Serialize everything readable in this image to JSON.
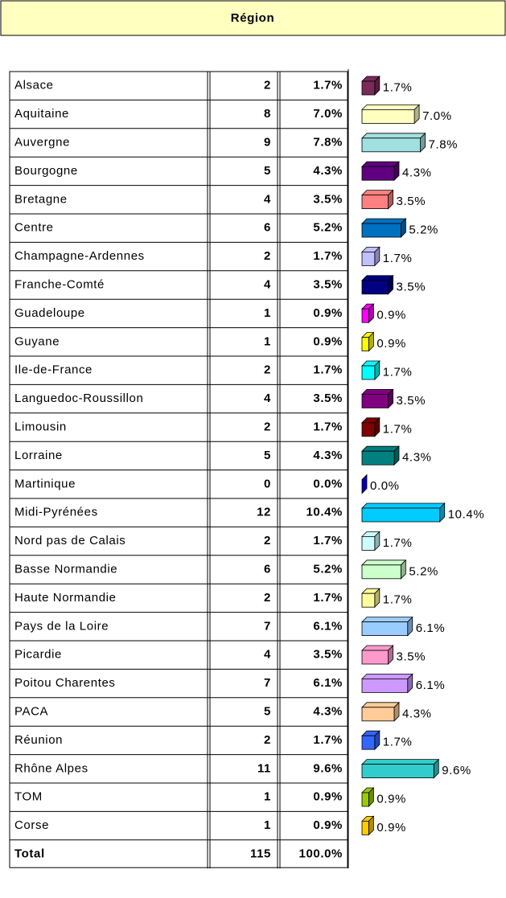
{
  "header": "Région",
  "rows": [
    {
      "region": "Alsace",
      "count": 2,
      "percent": 1.7,
      "percent_label": "1.7%",
      "color": "#7b2a5a"
    },
    {
      "region": "Aquitaine",
      "count": 8,
      "percent": 7.0,
      "percent_label": "7.0%",
      "color": "#ffffc0"
    },
    {
      "region": "Auvergne",
      "count": 9,
      "percent": 7.8,
      "percent_label": "7.8%",
      "color": "#a0e0e0"
    },
    {
      "region": "Bourgogne",
      "count": 5,
      "percent": 4.3,
      "percent_label": "4.3%",
      "color": "#600080"
    },
    {
      "region": "Bretagne",
      "count": 4,
      "percent": 3.5,
      "percent_label": "3.5%",
      "color": "#ff8080"
    },
    {
      "region": "Centre",
      "count": 6,
      "percent": 5.2,
      "percent_label": "5.2%",
      "color": "#0070c0"
    },
    {
      "region": "Champagne-Ardennes",
      "count": 2,
      "percent": 1.7,
      "percent_label": "1.7%",
      "color": "#c0c0ff"
    },
    {
      "region": "Franche-Comté",
      "count": 4,
      "percent": 3.5,
      "percent_label": "3.5%",
      "color": "#000080"
    },
    {
      "region": "Guadeloupe",
      "count": 1,
      "percent": 0.9,
      "percent_label": "0.9%",
      "color": "#ff00ff"
    },
    {
      "region": "Guyane",
      "count": 1,
      "percent": 0.9,
      "percent_label": "0.9%",
      "color": "#ffff00"
    },
    {
      "region": "Ile-de-France",
      "count": 2,
      "percent": 1.7,
      "percent_label": "1.7%",
      "color": "#00ffff"
    },
    {
      "region": "Languedoc-Roussillon",
      "count": 4,
      "percent": 3.5,
      "percent_label": "3.5%",
      "color": "#800080"
    },
    {
      "region": "Limousin",
      "count": 2,
      "percent": 1.7,
      "percent_label": "1.7%",
      "color": "#800000"
    },
    {
      "region": "Lorraine",
      "count": 5,
      "percent": 4.3,
      "percent_label": "4.3%",
      "color": "#008080"
    },
    {
      "region": "Martinique",
      "count": 0,
      "percent": 0.0,
      "percent_label": "0.0%",
      "color": "#0000ff"
    },
    {
      "region": "Midi-Pyrénées",
      "count": 12,
      "percent": 10.4,
      "percent_label": "10.4%",
      "color": "#00ccff"
    },
    {
      "region": "Nord pas de Calais",
      "count": 2,
      "percent": 1.7,
      "percent_label": "1.7%",
      "color": "#ccffff"
    },
    {
      "region": "Basse Normandie",
      "count": 6,
      "percent": 5.2,
      "percent_label": "5.2%",
      "color": "#ccffcc"
    },
    {
      "region": "Haute Normandie",
      "count": 2,
      "percent": 1.7,
      "percent_label": "1.7%",
      "color": "#ffff99"
    },
    {
      "region": "Pays de la Loire",
      "count": 7,
      "percent": 6.1,
      "percent_label": "6.1%",
      "color": "#99ccff"
    },
    {
      "region": "Picardie",
      "count": 4,
      "percent": 3.5,
      "percent_label": "3.5%",
      "color": "#ff99cc"
    },
    {
      "region": "Poitou Charentes",
      "count": 7,
      "percent": 6.1,
      "percent_label": "6.1%",
      "color": "#cc99ff"
    },
    {
      "region": "PACA",
      "count": 5,
      "percent": 4.3,
      "percent_label": "4.3%",
      "color": "#ffcc99"
    },
    {
      "region": "Réunion",
      "count": 2,
      "percent": 1.7,
      "percent_label": "1.7%",
      "color": "#3366ff"
    },
    {
      "region": "Rhône Alpes",
      "count": 11,
      "percent": 9.6,
      "percent_label": "9.6%",
      "color": "#33cccc"
    },
    {
      "region": "TOM",
      "count": 1,
      "percent": 0.9,
      "percent_label": "0.9%",
      "color": "#99cc00"
    },
    {
      "region": "Corse",
      "count": 1,
      "percent": 0.9,
      "percent_label": "0.9%",
      "color": "#ffcc00"
    }
  ],
  "total": {
    "region": "Total",
    "count": 115,
    "percent_label": "100.0%"
  }
}
